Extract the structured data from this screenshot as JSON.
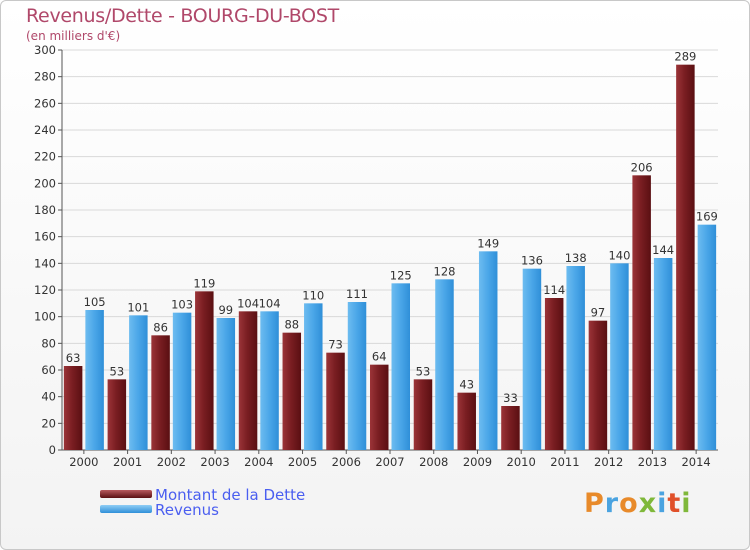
{
  "title": "Revenus/Dette - BOURG-DU-BOST",
  "subtitle": "(en milliers d'€)",
  "logo": {
    "text": "Proxiti",
    "colors": [
      "#e88a2a",
      "#4aa3e0",
      "#e88a2a",
      "#7fb83a",
      "#4aa3e0",
      "#e0502a",
      "#7fb83a"
    ]
  },
  "colors": {
    "dette": "#7a1e22",
    "revenus": "#4aa6e8"
  },
  "chart_data": {
    "type": "bar",
    "categories": [
      "2000",
      "2001",
      "2002",
      "2003",
      "2004",
      "2005",
      "2006",
      "2007",
      "2008",
      "2009",
      "2010",
      "2011",
      "2012",
      "2013",
      "2014"
    ],
    "series": [
      {
        "name": "Montant de la Dette",
        "values": [
          63,
          53,
          86,
          119,
          104,
          88,
          73,
          64,
          53,
          43,
          33,
          114,
          97,
          206,
          289
        ]
      },
      {
        "name": "Revenus",
        "values": [
          105,
          101,
          103,
          99,
          104,
          110,
          111,
          125,
          128,
          149,
          136,
          138,
          140,
          144,
          169
        ]
      }
    ],
    "ylim": [
      0,
      300
    ],
    "yticks": [
      0,
      20,
      40,
      60,
      80,
      100,
      120,
      140,
      160,
      180,
      200,
      220,
      240,
      260,
      280,
      300
    ],
    "grid": true,
    "legend": "bottom-left"
  }
}
